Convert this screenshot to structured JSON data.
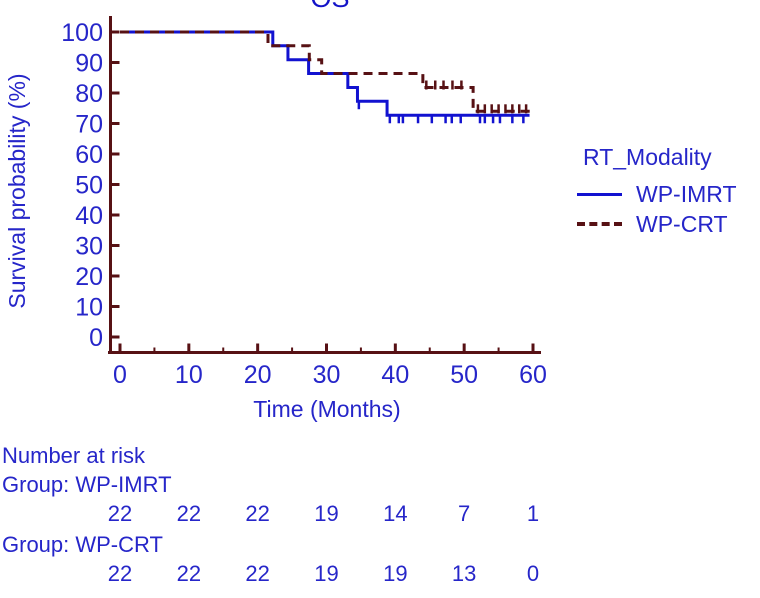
{
  "figure": {
    "title": "OS",
    "ylabel": "Survival probability (%)",
    "xlabel": "Time (Months)"
  },
  "colors": {
    "text_blue": "#2626c9",
    "imrt_blue": "#1212d0",
    "crt_maroon": "#571114",
    "axis": "#571114",
    "background": "#ffffff"
  },
  "legend": {
    "title": "RT_Modality"
  },
  "chart_data": {
    "type": "line",
    "subtype": "kaplan-meier-step",
    "title": "OS",
    "xlabel": "Time (Months)",
    "ylabel": "Survival probability (%)",
    "xlim": [
      0,
      60
    ],
    "ylim": [
      0,
      100
    ],
    "xticks": [
      0,
      10,
      20,
      30,
      40,
      50,
      60
    ],
    "xticks_minor": [
      5,
      15,
      25,
      35,
      45,
      55
    ],
    "yticks": [
      0,
      10,
      20,
      30,
      40,
      50,
      60,
      70,
      80,
      90,
      100
    ],
    "grid": false,
    "legend_position": "right",
    "legend_title": "RT_Modality",
    "series": [
      {
        "name": "WP-IMRT",
        "color": "#1212d0",
        "style": "solid",
        "end_time": 59.5,
        "steps": [
          [
            0,
            100
          ],
          [
            22.2,
            95.5
          ],
          [
            24.4,
            90.9
          ],
          [
            27.4,
            86.4
          ],
          [
            33.1,
            81.8
          ],
          [
            34.5,
            77.3
          ],
          [
            38.8,
            72.7
          ]
        ],
        "censors": [
          [
            34.7,
            77.3
          ],
          [
            39.2,
            72.7
          ],
          [
            40.5,
            72.7
          ],
          [
            41.1,
            72.7
          ],
          [
            43.3,
            72.7
          ],
          [
            45.3,
            72.7
          ],
          [
            47.3,
            72.7
          ],
          [
            48.2,
            72.7
          ],
          [
            49.5,
            72.7
          ],
          [
            52.3,
            72.7
          ],
          [
            53.0,
            72.7
          ],
          [
            54.2,
            72.7
          ],
          [
            55.2,
            72.7
          ],
          [
            57.0,
            72.7
          ],
          [
            58.6,
            72.7
          ]
        ]
      },
      {
        "name": "WP-CRT",
        "color": "#571114",
        "style": "dashed",
        "end_time": 59.7,
        "steps": [
          [
            0,
            100
          ],
          [
            21.5,
            95.5
          ],
          [
            27.5,
            90.9
          ],
          [
            29.3,
            86.4
          ],
          [
            44.0,
            81.8
          ],
          [
            51.3,
            74.0
          ]
        ],
        "censors": [
          [
            44.5,
            81.8
          ],
          [
            45.8,
            81.8
          ],
          [
            47.0,
            81.8
          ],
          [
            48.3,
            81.8
          ],
          [
            49.6,
            81.8
          ],
          [
            52.0,
            74.0
          ],
          [
            53.0,
            74.0
          ],
          [
            54.0,
            74.0
          ],
          [
            55.0,
            74.0
          ],
          [
            56.0,
            74.0
          ],
          [
            57.0,
            74.0
          ],
          [
            58.0,
            74.0
          ],
          [
            59.0,
            74.0
          ]
        ]
      }
    ],
    "number_at_risk": {
      "heading": "Number at risk",
      "times": [
        0,
        10,
        20,
        30,
        40,
        50,
        60
      ],
      "groups": [
        {
          "label": "Group: WP-IMRT",
          "counts": [
            22,
            22,
            22,
            19,
            14,
            7,
            1
          ]
        },
        {
          "label": "Group: WP-CRT",
          "counts": [
            22,
            22,
            22,
            19,
            19,
            13,
            0
          ]
        }
      ]
    }
  }
}
